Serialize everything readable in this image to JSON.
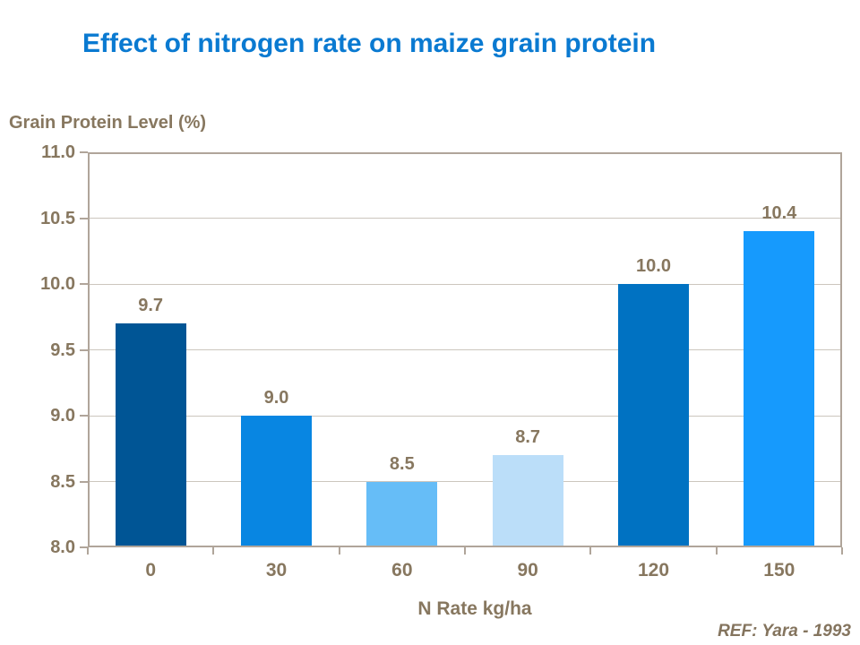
{
  "title": "Effect of nitrogen rate on maize grain protein",
  "footer_ref": "REF: Yara - 1993",
  "colors": {
    "title_text": "#0A7AD1",
    "axis_text": "#87775F",
    "ref_text": "#84745E",
    "frame": "#B0A59A",
    "gridline": "#CCC6BE",
    "background": "#FFFFFF",
    "bar_colors": [
      "#005595",
      "#0886E2",
      "#66BDF7",
      "#BBDEF9",
      "#0072C2",
      "#169AFD"
    ]
  },
  "chart_data": {
    "type": "bar",
    "title": "Effect of nitrogen rate on maize grain protein",
    "categories": [
      "0",
      "30",
      "60",
      "90",
      "120",
      "150"
    ],
    "values": [
      9.7,
      9.0,
      8.5,
      8.7,
      10.0,
      10.4
    ],
    "value_labels": [
      "9.7",
      "9.0",
      "8.5",
      "8.7",
      "10.0",
      "10.4"
    ],
    "xlabel": "N Rate kg/ha",
    "ylabel": "Grain Protein Level (%)",
    "ylim": [
      8.0,
      11.0
    ],
    "ytick_step": 0.5,
    "ytick_labels": [
      "8.0",
      "8.5",
      "9.0",
      "9.5",
      "10.0",
      "10.5",
      "11.0"
    ],
    "grid": true,
    "legend": false,
    "source_note": "REF: Yara - 1993"
  }
}
